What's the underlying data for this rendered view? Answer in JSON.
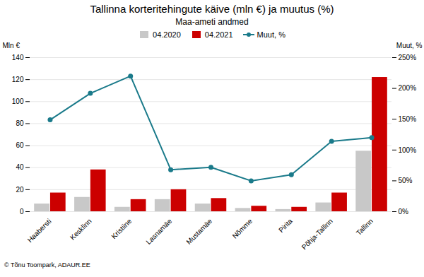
{
  "chart_data": {
    "type": "bar",
    "title": "Tallinna korteritehingute käive (mln €) ja muutus (%)",
    "subtitle": "Maa-ameti andmed",
    "categories": [
      "Haabersti",
      "Kesklinn",
      "Kristiine",
      "Lasnamäe",
      "Mustamäe",
      "Nõmme",
      "Pirita",
      "Põhja-Tallinn",
      "Tallinn"
    ],
    "series": [
      {
        "name": "04.2020",
        "type": "bar",
        "color": "#c8c8c8",
        "values": [
          7,
          13,
          4,
          11,
          7,
          3,
          2,
          8,
          55
        ]
      },
      {
        "name": "04.2021",
        "type": "bar",
        "color": "#cc0000",
        "values": [
          17,
          38,
          11,
          20,
          12,
          5,
          4,
          17,
          122
        ]
      },
      {
        "name": "Muut, %",
        "type": "line",
        "axis": "y2",
        "marker": "circle",
        "color": "#1a7a8a",
        "values": [
          149,
          192,
          220,
          68,
          72,
          50,
          60,
          114,
          120
        ]
      }
    ],
    "ylabel": "Mln €",
    "y2label": "Muut, %",
    "ylim": [
      0,
      140
    ],
    "yticks": [
      0,
      20,
      40,
      60,
      80,
      100,
      120,
      140
    ],
    "y2lim": [
      0,
      250
    ],
    "y2ticks": [
      {
        "value": 0,
        "label": "0%"
      },
      {
        "value": 50,
        "label": "50%"
      },
      {
        "value": 100,
        "label": "100%"
      },
      {
        "value": 150,
        "label": "150%"
      },
      {
        "value": 200,
        "label": "200%"
      },
      {
        "value": 250,
        "label": "250%"
      }
    ],
    "grid": true,
    "legend": "top",
    "annotations": [
      "© Tõnu Toompark, ADAUR.EE"
    ]
  }
}
